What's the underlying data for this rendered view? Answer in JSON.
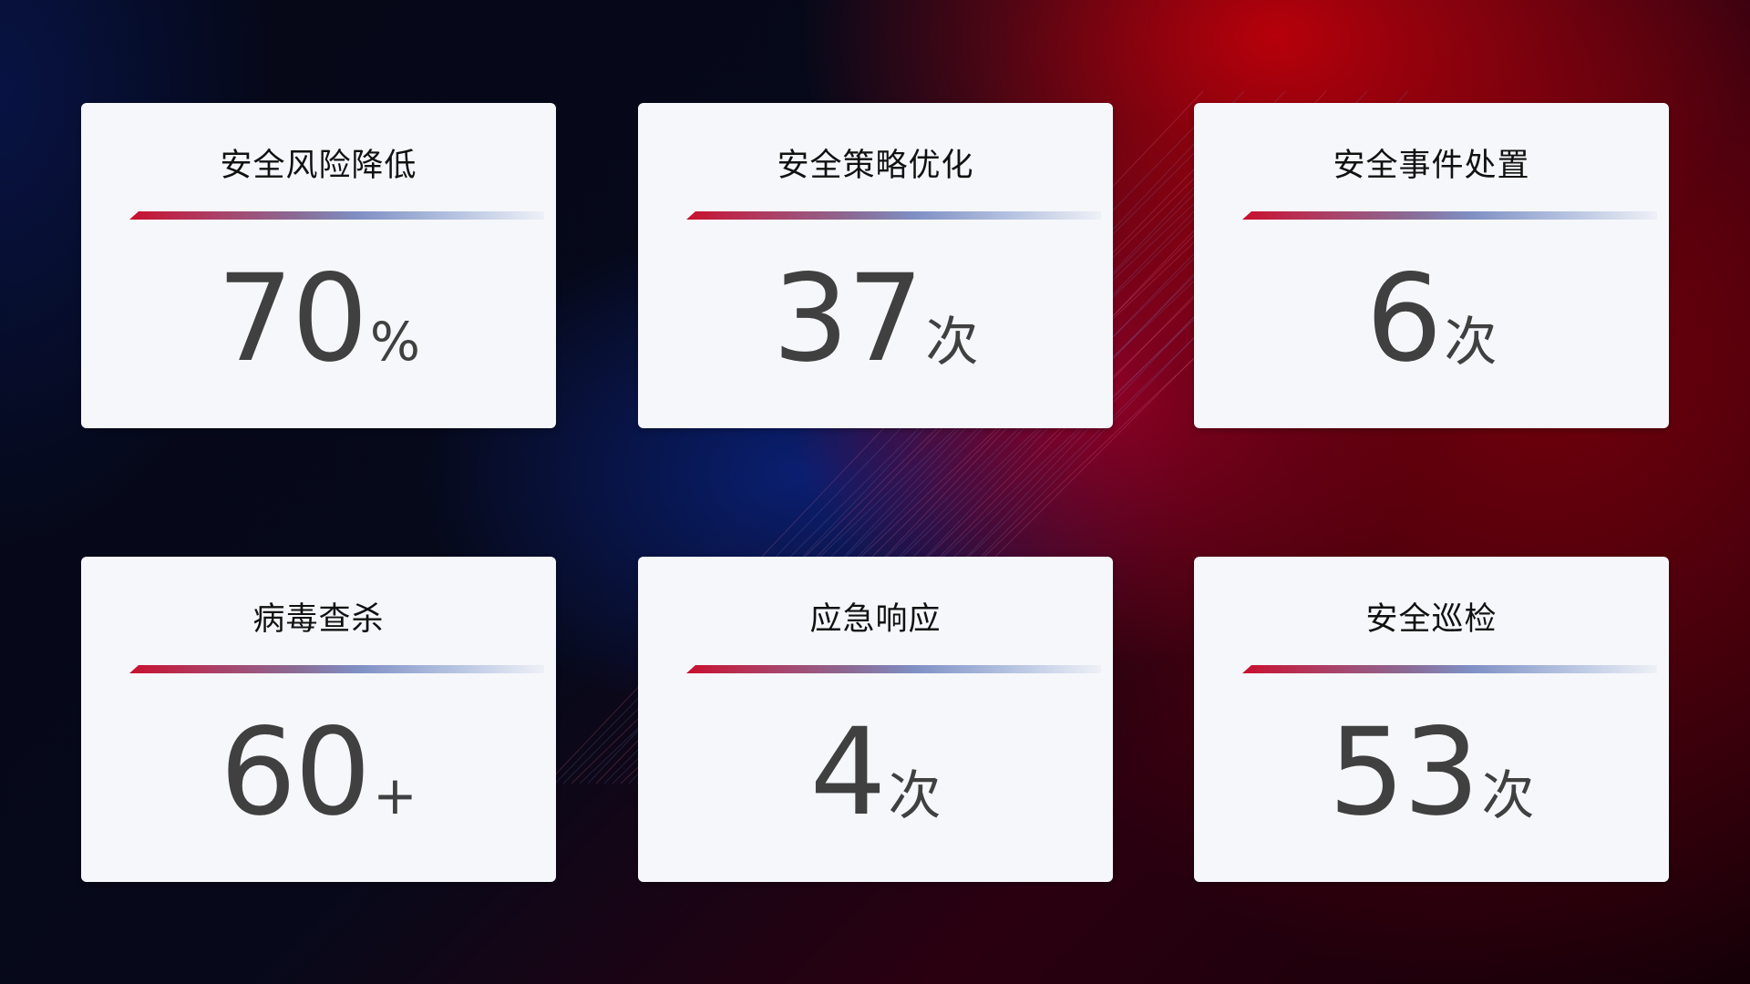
{
  "cards": [
    {
      "title": "安全风险降低",
      "value": "70",
      "unit": "%"
    },
    {
      "title": "安全策略优化",
      "value": "37",
      "unit": "次"
    },
    {
      "title": "安全事件处置",
      "value": "6",
      "unit": "次"
    },
    {
      "title": "病毒查杀",
      "value": "60",
      "unit": "+"
    },
    {
      "title": "应急响应",
      "value": "4",
      "unit": "次"
    },
    {
      "title": "安全巡检",
      "value": "53",
      "unit": "次"
    }
  ],
  "colors": {
    "accent_red": "#c8102e",
    "accent_blue": "#7f8fc4",
    "card_bg": "#f6f7fb",
    "value_text": "#404040"
  }
}
